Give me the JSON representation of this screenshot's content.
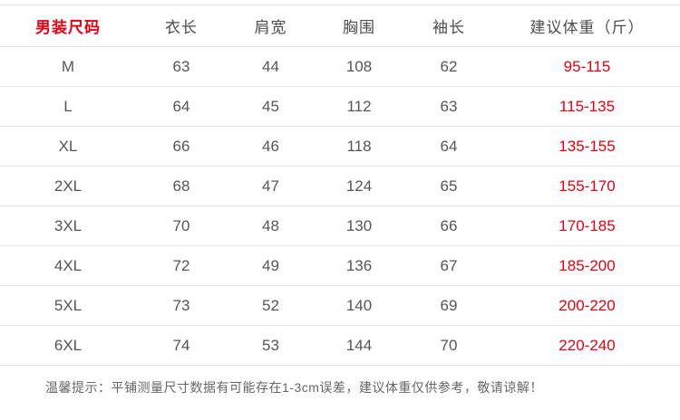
{
  "colors": {
    "accent_red": "#e60012",
    "header_text": "#4d4d4d",
    "cell_text": "#555555",
    "divider_line": "#e4e4e4",
    "note_text": "#666666",
    "background": "#ffffff"
  },
  "chart_data": {
    "type": "table",
    "title": "男装尺码",
    "columns": [
      "男装尺码",
      "衣长",
      "肩宽",
      "胸围",
      "袖长",
      "建议体重（斤）"
    ],
    "rows": [
      [
        "M",
        "63",
        "44",
        "108",
        "62",
        "95-115"
      ],
      [
        "L",
        "64",
        "45",
        "112",
        "63",
        "115-135"
      ],
      [
        "XL",
        "66",
        "46",
        "118",
        "64",
        "135-155"
      ],
      [
        "2XL",
        "68",
        "47",
        "124",
        "65",
        "155-170"
      ],
      [
        "3XL",
        "70",
        "48",
        "130",
        "66",
        "170-185"
      ],
      [
        "4XL",
        "72",
        "49",
        "136",
        "67",
        "185-200"
      ],
      [
        "5XL",
        "73",
        "52",
        "140",
        "69",
        "200-220"
      ],
      [
        "6XL",
        "74",
        "53",
        "144",
        "70",
        "220-240"
      ],
      [],
      []
    ],
    "highlight_column_indices": [
      0,
      5
    ],
    "note": "温馨提示：平铺测量尺寸数据有可能存在1-3cm误差，建议体重仅供参考，敬请谅解！"
  }
}
